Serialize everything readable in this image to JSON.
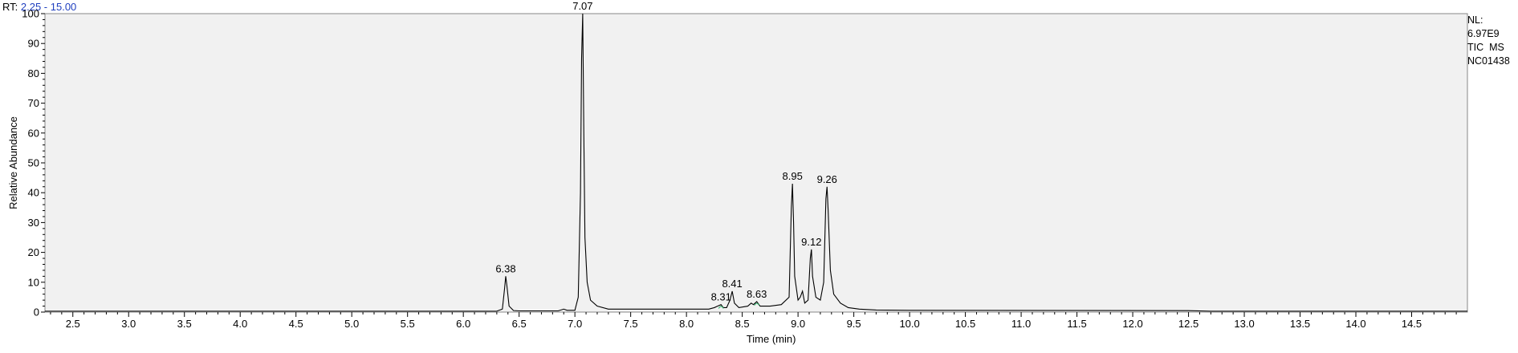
{
  "header": {
    "rt_label": "RT:",
    "rt_range": "2.25 - 15.00"
  },
  "info": {
    "nl_label": "NL:",
    "nl_value": "6.97E9",
    "scan": "TIC  MS",
    "sample": "NC01438"
  },
  "colors": {
    "plot_bg": "#f1f1f1",
    "trace": "#000000",
    "rt_range": "#1f3fbf",
    "marker": "#3cb371"
  },
  "chart_data": {
    "type": "line",
    "title": "",
    "xlabel": "Time (min)",
    "ylabel": "Relative Abundance",
    "xlim": [
      2.25,
      15.0
    ],
    "ylim": [
      0,
      100
    ],
    "x_ticks": [
      "2.5",
      "3.0",
      "3.5",
      "4.0",
      "4.5",
      "5.0",
      "5.5",
      "6.0",
      "6.5",
      "7.0",
      "7.5",
      "8.0",
      "8.5",
      "9.0",
      "9.5",
      "10.0",
      "10.5",
      "11.0",
      "11.5",
      "12.0",
      "12.5",
      "13.0",
      "13.5",
      "14.0",
      "14.5"
    ],
    "y_ticks": [
      "0",
      "10",
      "20",
      "30",
      "40",
      "50",
      "60",
      "70",
      "80",
      "90",
      "100"
    ],
    "grid": false,
    "series": [
      {
        "points": [
          [
            2.25,
            0.3
          ],
          [
            6.3,
            0.3
          ],
          [
            6.35,
            1
          ],
          [
            6.37,
            8
          ],
          [
            6.38,
            12
          ],
          [
            6.39,
            9
          ],
          [
            6.41,
            2
          ],
          [
            6.45,
            0.5
          ],
          [
            6.5,
            0.4
          ],
          [
            6.85,
            0.4
          ],
          [
            6.9,
            1
          ],
          [
            6.93,
            0.6
          ],
          [
            7.0,
            0.6
          ],
          [
            7.03,
            5
          ],
          [
            7.05,
            40
          ],
          [
            7.06,
            85
          ],
          [
            7.07,
            100
          ],
          [
            7.08,
            60
          ],
          [
            7.09,
            25
          ],
          [
            7.11,
            10
          ],
          [
            7.14,
            4
          ],
          [
            7.2,
            2
          ],
          [
            7.3,
            1
          ],
          [
            8.2,
            1
          ],
          [
            8.25,
            1.5
          ],
          [
            8.28,
            2
          ],
          [
            8.31,
            2.5
          ],
          [
            8.33,
            1.5
          ],
          [
            8.36,
            1.5
          ],
          [
            8.39,
            4
          ],
          [
            8.41,
            7
          ],
          [
            8.43,
            3
          ],
          [
            8.47,
            1.5
          ],
          [
            8.55,
            2
          ],
          [
            8.58,
            3
          ],
          [
            8.6,
            2.5
          ],
          [
            8.63,
            3.5
          ],
          [
            8.66,
            2
          ],
          [
            8.75,
            2
          ],
          [
            8.85,
            2.5
          ],
          [
            8.92,
            5
          ],
          [
            8.94,
            35
          ],
          [
            8.95,
            43
          ],
          [
            8.96,
            30
          ],
          [
            8.97,
            12
          ],
          [
            9.0,
            4
          ],
          [
            9.02,
            5
          ],
          [
            9.04,
            7
          ],
          [
            9.06,
            3
          ],
          [
            9.09,
            4
          ],
          [
            9.11,
            18
          ],
          [
            9.12,
            21
          ],
          [
            9.13,
            12
          ],
          [
            9.16,
            5
          ],
          [
            9.2,
            4
          ],
          [
            9.23,
            10
          ],
          [
            9.25,
            38
          ],
          [
            9.26,
            42
          ],
          [
            9.27,
            34
          ],
          [
            9.29,
            14
          ],
          [
            9.32,
            6
          ],
          [
            9.38,
            3
          ],
          [
            9.45,
            1.5
          ],
          [
            9.55,
            1
          ],
          [
            9.7,
            0.7
          ],
          [
            10.0,
            0.6
          ],
          [
            12.5,
            0.5
          ],
          [
            12.7,
            0.3
          ],
          [
            15.0,
            0.3
          ]
        ]
      }
    ],
    "peak_labels": [
      {
        "x": 6.38,
        "y": 12,
        "label": "6.38"
      },
      {
        "x": 7.07,
        "y": 100,
        "label": "7.07"
      },
      {
        "x": 8.31,
        "y": 2.5,
        "label": "8.31"
      },
      {
        "x": 8.41,
        "y": 7,
        "label": "8.41"
      },
      {
        "x": 8.63,
        "y": 3.5,
        "label": "8.63"
      },
      {
        "x": 8.95,
        "y": 43,
        "label": "8.95"
      },
      {
        "x": 9.12,
        "y": 21,
        "label": "9.12"
      },
      {
        "x": 9.26,
        "y": 42,
        "label": "9.26"
      }
    ],
    "markers": [
      {
        "x": 8.31,
        "y": 1.5
      },
      {
        "x": 8.63,
        "y": 2.5
      }
    ]
  }
}
